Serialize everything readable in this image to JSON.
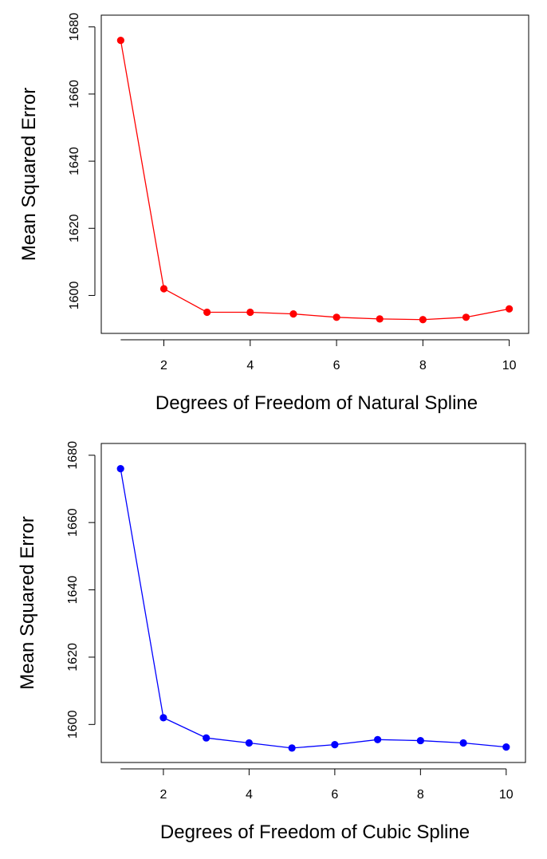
{
  "chart_data": [
    {
      "type": "line",
      "title": "",
      "xlabel": "Degrees of Freedom of Natural Spline",
      "ylabel": "Mean Squared Error",
      "x": [
        1,
        2,
        3,
        4,
        5,
        6,
        7,
        8,
        9,
        10
      ],
      "series": [
        {
          "name": "Natural Spline",
          "color": "#ff0000",
          "values": [
            1676,
            1602,
            1595,
            1595,
            1594.5,
            1593.5,
            1593,
            1592.8,
            1593.5,
            1596
          ]
        }
      ],
      "xticks": [
        2,
        4,
        6,
        8,
        10
      ],
      "xtick_labels": [
        "2",
        "4",
        "6",
        "8",
        "10"
      ],
      "yticks": [
        1600,
        1620,
        1640,
        1660,
        1680
      ],
      "ytick_labels": [
        "1600",
        "1620",
        "1640",
        "1660",
        "1680"
      ],
      "xlim": [
        0.55,
        10.45
      ],
      "ylim": [
        1588.7,
        1683.5
      ],
      "grid": false,
      "legend": "none"
    },
    {
      "type": "line",
      "title": "",
      "xlabel": "Degrees of Freedom of Cubic Spline",
      "ylabel": "Mean Squared Error",
      "x": [
        1,
        2,
        3,
        4,
        5,
        6,
        7,
        8,
        9,
        10
      ],
      "series": [
        {
          "name": "Cubic Spline",
          "color": "#0000ff",
          "values": [
            1676,
            1602,
            1596,
            1594.5,
            1593,
            1594,
            1595.5,
            1595.2,
            1594.5,
            1593.3
          ]
        }
      ],
      "xticks": [
        2,
        4,
        6,
        8,
        10
      ],
      "xtick_labels": [
        "2",
        "4",
        "6",
        "8",
        "10"
      ],
      "yticks": [
        1600,
        1620,
        1640,
        1660,
        1680
      ],
      "ytick_labels": [
        "1600",
        "1620",
        "1640",
        "1660",
        "1680"
      ],
      "xlim": [
        0.55,
        10.45
      ],
      "ylim": [
        1588.7,
        1683.5
      ],
      "grid": false,
      "legend": "none"
    }
  ]
}
